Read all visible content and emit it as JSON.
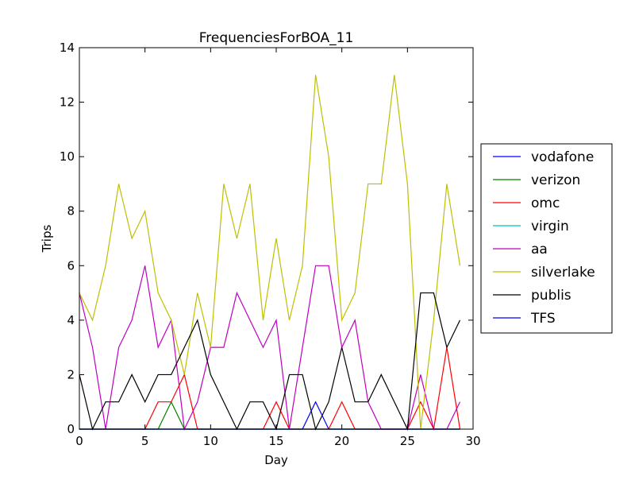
{
  "chart_data": {
    "type": "line",
    "title": "FrequenciesForBOA_11",
    "xlabel": "Day",
    "ylabel": "Trips",
    "xlim": [
      0,
      30
    ],
    "ylim": [
      0,
      14
    ],
    "xticks": [
      0,
      5,
      10,
      15,
      20,
      25,
      30
    ],
    "yticks": [
      0,
      2,
      4,
      6,
      8,
      10,
      12,
      14
    ],
    "grid": false,
    "legend_position": "right",
    "x": [
      0,
      1,
      2,
      3,
      4,
      5,
      6,
      7,
      8,
      9,
      10,
      11,
      12,
      13,
      14,
      15,
      16,
      17,
      18,
      19,
      20,
      21,
      22,
      23,
      24,
      25,
      26,
      27,
      28,
      29
    ],
    "series": [
      {
        "name": "vodafone",
        "color": "#0000ff",
        "values": [
          0,
          0,
          0,
          0,
          0,
          0,
          0,
          0,
          0,
          0,
          0,
          0,
          0,
          0,
          0,
          0,
          0,
          0,
          0,
          0,
          0,
          0,
          0,
          0,
          0,
          0,
          0,
          0,
          0,
          0
        ]
      },
      {
        "name": "verizon",
        "color": "#008000",
        "values": [
          0,
          0,
          0,
          0,
          0,
          0,
          0,
          1,
          0,
          0,
          0,
          0,
          0,
          0,
          0,
          0,
          0,
          0,
          0,
          0,
          0,
          0,
          0,
          0,
          0,
          0,
          0,
          0,
          0,
          0
        ]
      },
      {
        "name": "omc",
        "color": "#ff0000",
        "values": [
          0,
          0,
          0,
          0,
          0,
          0,
          1,
          1,
          2,
          0,
          0,
          0,
          0,
          0,
          0,
          1,
          0,
          0,
          0,
          0,
          1,
          0,
          0,
          0,
          0,
          0,
          1,
          0,
          3,
          0
        ]
      },
      {
        "name": "virgin",
        "color": "#00bfbf",
        "values": [
          0,
          0,
          0,
          0,
          0,
          0,
          0,
          0,
          0,
          0,
          0,
          0,
          0,
          0,
          0,
          0,
          0,
          0,
          0,
          0,
          0,
          0,
          0,
          0,
          0,
          0,
          0,
          0,
          0,
          0
        ]
      },
      {
        "name": "aa",
        "color": "#bf00bf",
        "values": [
          5,
          3,
          0,
          3,
          4,
          6,
          3,
          4,
          0,
          1,
          3,
          3,
          5,
          4,
          3,
          4,
          0,
          3,
          6,
          6,
          3,
          4,
          1,
          0,
          0,
          0,
          2,
          0,
          0,
          1
        ]
      },
      {
        "name": "silverlake",
        "color": "#bfbf00",
        "values": [
          5,
          4,
          6,
          9,
          7,
          8,
          5,
          4,
          2,
          5,
          3,
          9,
          7,
          9,
          4,
          7,
          4,
          6,
          13,
          10,
          4,
          5,
          9,
          9,
          13,
          9,
          0,
          4,
          9,
          6
        ]
      },
      {
        "name": "publis",
        "color": "#000000",
        "values": [
          2,
          0,
          1,
          1,
          2,
          1,
          2,
          2,
          3,
          4,
          2,
          1,
          0,
          1,
          1,
          0,
          2,
          2,
          0,
          1,
          3,
          1,
          1,
          2,
          1,
          0,
          5,
          5,
          3,
          4
        ]
      },
      {
        "name": "TFS",
        "color": "#0000ff",
        "values": [
          0,
          0,
          0,
          0,
          0,
          0,
          0,
          0,
          0,
          0,
          0,
          0,
          0,
          0,
          0,
          0,
          0,
          0,
          1,
          0,
          0,
          0,
          0,
          0,
          0,
          0,
          0,
          0,
          0,
          0
        ]
      }
    ]
  }
}
